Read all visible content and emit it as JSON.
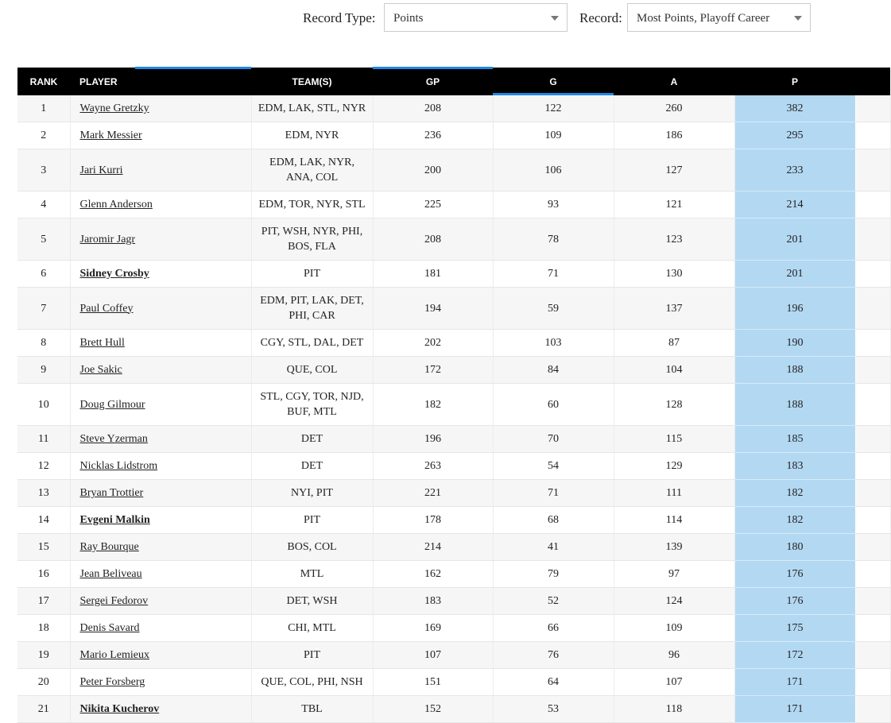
{
  "controls": [
    {
      "label": "Record Type:",
      "value": "Points"
    },
    {
      "label": "Record:",
      "value": "Most Points, Playoff Career"
    }
  ],
  "table": {
    "columns": [
      "RANK",
      "PLAYER",
      "TEAM(S)",
      "GP",
      "G",
      "A",
      "P"
    ],
    "rows": [
      {
        "rank": 1,
        "player": "Wayne Gretzky",
        "team": "EDM, LAK, STL, NYR",
        "gp": 208,
        "g": 122,
        "a": 260,
        "p": 382
      },
      {
        "rank": 2,
        "player": "Mark Messier",
        "team": "EDM, NYR",
        "gp": 236,
        "g": 109,
        "a": 186,
        "p": 295
      },
      {
        "rank": 3,
        "player": "Jari Kurri",
        "team": [
          "EDM, LAK, NYR,",
          "ANA, COL"
        ],
        "gp": 200,
        "g": 106,
        "a": 127,
        "p": 233
      },
      {
        "rank": 4,
        "player": "Glenn Anderson",
        "team": "EDM, TOR, NYR, STL",
        "gp": 225,
        "g": 93,
        "a": 121,
        "p": 214
      },
      {
        "rank": 5,
        "player": "Jaromir Jagr",
        "team": [
          "PIT, WSH, NYR, PHI,",
          "BOS, FLA"
        ],
        "gp": 208,
        "g": 78,
        "a": 123,
        "p": 201
      },
      {
        "rank": 6,
        "player": "Sidney Crosby",
        "bold": true,
        "team": "PIT",
        "gp": 181,
        "g": 71,
        "a": 130,
        "p": 201
      },
      {
        "rank": 7,
        "player": "Paul Coffey",
        "team": [
          "EDM, PIT, LAK, DET,",
          "PHI, CAR"
        ],
        "gp": 194,
        "g": 59,
        "a": 137,
        "p": 196
      },
      {
        "rank": 8,
        "player": "Brett Hull",
        "team": "CGY, STL, DAL, DET",
        "gp": 202,
        "g": 103,
        "a": 87,
        "p": 190
      },
      {
        "rank": 9,
        "player": "Joe Sakic",
        "team": "QUE, COL",
        "gp": 172,
        "g": 84,
        "a": 104,
        "p": 188
      },
      {
        "rank": 10,
        "player": "Doug Gilmour",
        "team": [
          "STL, CGY, TOR, NJD,",
          "BUF, MTL"
        ],
        "gp": 182,
        "g": 60,
        "a": 128,
        "p": 188
      },
      {
        "rank": 11,
        "player": "Steve Yzerman",
        "team": "DET",
        "gp": 196,
        "g": 70,
        "a": 115,
        "p": 185
      },
      {
        "rank": 12,
        "player": "Nicklas Lidstrom",
        "team": "DET",
        "gp": 263,
        "g": 54,
        "a": 129,
        "p": 183
      },
      {
        "rank": 13,
        "player": "Bryan Trottier",
        "team": "NYI, PIT",
        "gp": 221,
        "g": 71,
        "a": 111,
        "p": 182
      },
      {
        "rank": 14,
        "player": "Evgeni Malkin",
        "bold": true,
        "team": "PIT",
        "gp": 178,
        "g": 68,
        "a": 114,
        "p": 182
      },
      {
        "rank": 15,
        "player": "Ray Bourque",
        "team": "BOS, COL",
        "gp": 214,
        "g": 41,
        "a": 139,
        "p": 180
      },
      {
        "rank": 16,
        "player": "Jean Beliveau",
        "team": "MTL",
        "gp": 162,
        "g": 79,
        "a": 97,
        "p": 176
      },
      {
        "rank": 17,
        "player": "Sergei Fedorov",
        "team": "DET, WSH",
        "gp": 183,
        "g": 52,
        "a": 124,
        "p": 176
      },
      {
        "rank": 18,
        "player": "Denis Savard",
        "team": "CHI, MTL",
        "gp": 169,
        "g": 66,
        "a": 109,
        "p": 175
      },
      {
        "rank": 19,
        "player": "Mario Lemieux",
        "team": "PIT",
        "gp": 107,
        "g": 76,
        "a": 96,
        "p": 172
      },
      {
        "rank": 20,
        "player": "Peter Forsberg",
        "team": "QUE, COL, PHI, NSH",
        "gp": 151,
        "g": 64,
        "a": 107,
        "p": 171
      },
      {
        "rank": 21,
        "player": "Nikita Kucherov",
        "bold": true,
        "team": "TBL",
        "gp": 152,
        "g": 53,
        "a": 118,
        "p": 171
      }
    ]
  }
}
